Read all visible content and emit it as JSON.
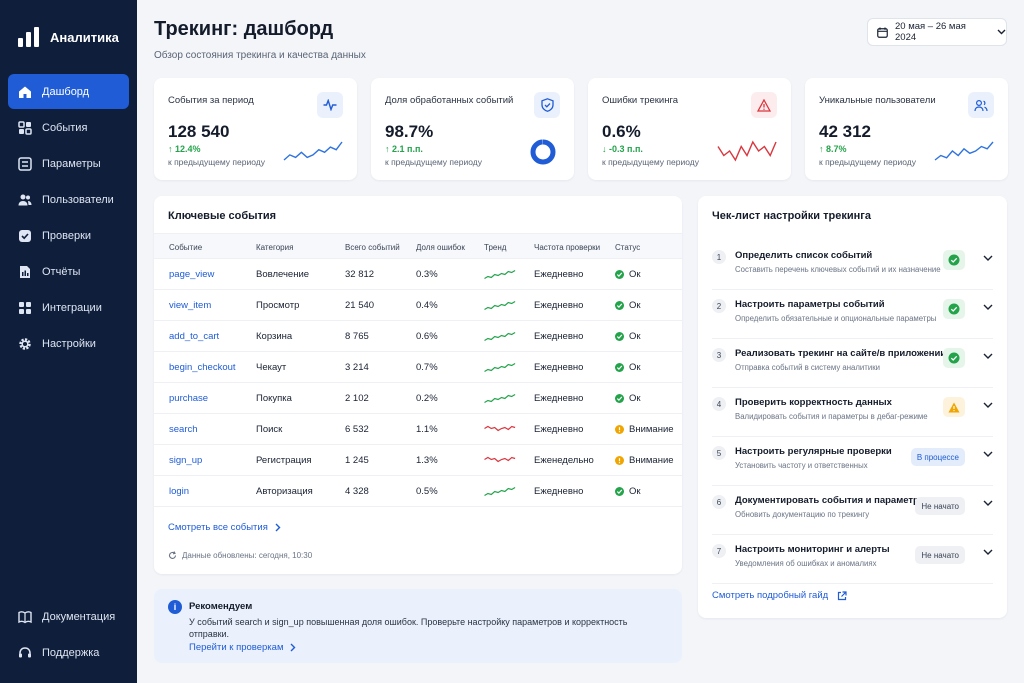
{
  "app": {
    "name": "Аналитика"
  },
  "sidebar": {
    "items": [
      {
        "label": "Дашборд",
        "icon": "home-icon"
      },
      {
        "label": "События",
        "icon": "grid-icon"
      },
      {
        "label": "Параметры",
        "icon": "sliders-icon"
      },
      {
        "label": "Пользователи",
        "icon": "users-icon"
      },
      {
        "label": "Проверки",
        "icon": "check-shield-icon"
      },
      {
        "label": "Отчёты",
        "icon": "report-icon"
      },
      {
        "label": "Интеграции",
        "icon": "integrations-icon"
      },
      {
        "label": "Настройки",
        "icon": "gear-icon"
      }
    ],
    "bottom": [
      {
        "label": "Документация",
        "icon": "book-icon"
      },
      {
        "label": "Поддержка",
        "icon": "headset-icon"
      }
    ]
  },
  "header": {
    "title": "Трекинг: дашборд",
    "subtitle": "Обзор состояния трекинга и качества данных",
    "date_range": "20 мая – 26 мая 2024"
  },
  "kpis": [
    {
      "title": "События за период",
      "value": "128 540",
      "delta": "↑ 12.4%",
      "note": "к предыдущему периоду",
      "icon": "pulse-icon",
      "trend": [
        5,
        7,
        6,
        8,
        6,
        7,
        9,
        8,
        10,
        9,
        12
      ]
    },
    {
      "title": "Доля обработанных событий",
      "value": "98.7%",
      "delta": "↑ 2.1 п.п.",
      "note": "к предыдущему периоду",
      "icon": "shield-check-icon",
      "progress": 0.987
    },
    {
      "title": "Ошибки трекинга",
      "value": "0.6%",
      "delta": "↓ -0.3 п.п.",
      "note": "к предыдущему периоду",
      "icon": "warning-icon",
      "trend": [
        8,
        6,
        7,
        5,
        8,
        6,
        9,
        7,
        8,
        6,
        9
      ]
    },
    {
      "title": "Уникальные пользователи",
      "value": "42 312",
      "delta": "↑ 8.7%",
      "note": "к предыдущему периоду",
      "icon": "users-icon",
      "trend": [
        4,
        6,
        5,
        8,
        6,
        9,
        7,
        8,
        10,
        9,
        12
      ]
    }
  ],
  "events": {
    "title": "Ключевые события",
    "columns": [
      "Событие",
      "Категория",
      "Всего событий",
      "Доля ошибок",
      "Тренд",
      "Частота проверки",
      "Статус"
    ],
    "rows": [
      {
        "event": "page_view",
        "category": "Вовлечение",
        "total": "32 812",
        "error": "0.3%",
        "trend": "up",
        "frequency": "Ежедневно",
        "status": "Ок",
        "status_type": "ok"
      },
      {
        "event": "view_item",
        "category": "Просмотр",
        "total": "21 540",
        "error": "0.4%",
        "trend": "up",
        "frequency": "Ежедневно",
        "status": "Ок",
        "status_type": "ok"
      },
      {
        "event": "add_to_cart",
        "category": "Корзина",
        "total": "8 765",
        "error": "0.6%",
        "trend": "up",
        "frequency": "Ежедневно",
        "status": "Ок",
        "status_type": "ok"
      },
      {
        "event": "begin_checkout",
        "category": "Чекаут",
        "total": "3 214",
        "error": "0.7%",
        "trend": "up",
        "frequency": "Ежедневно",
        "status": "Ок",
        "status_type": "ok"
      },
      {
        "event": "purchase",
        "category": "Покупка",
        "total": "2 102",
        "error": "0.2%",
        "trend": "up",
        "frequency": "Ежедневно",
        "status": "Ок",
        "status_type": "ok"
      },
      {
        "event": "search",
        "category": "Поиск",
        "total": "6 532",
        "error": "1.1%",
        "trend": "down",
        "frequency": "Ежедневно",
        "status": "Внимание",
        "status_type": "warn"
      },
      {
        "event": "sign_up",
        "category": "Регистрация",
        "total": "1 245",
        "error": "1.3%",
        "trend": "down",
        "frequency": "Еженедельно",
        "status": "Внимание",
        "status_type": "warn"
      },
      {
        "event": "login",
        "category": "Авторизация",
        "total": "4 328",
        "error": "0.5%",
        "trend": "up",
        "frequency": "Ежедневно",
        "status": "Ок",
        "status_type": "ok"
      }
    ],
    "see_all": "Смотреть все события",
    "updated": "Данные обновлены: сегодня, 10:30"
  },
  "recommend": {
    "title": "Рекомендуем",
    "text": "У событий search и sign_up повышенная доля ошибок. Проверьте настройку параметров и корректность отправки.",
    "link": "Перейти к проверкам"
  },
  "checklist": {
    "title": "Чек-лист настройки трекинга",
    "steps": [
      {
        "num": "1",
        "title": "Определить список событий",
        "desc": "Составить перечень ключевых событий и их назначение",
        "state": "done"
      },
      {
        "num": "2",
        "title": "Настроить параметры событий",
        "desc": "Определить обязательные и опциональные параметры",
        "state": "done"
      },
      {
        "num": "3",
        "title": "Реализовать трекинг на сайте/в приложении",
        "desc": "Отправка событий в систему аналитики",
        "state": "done"
      },
      {
        "num": "4",
        "title": "Проверить корректность данных",
        "desc": "Валидировать события и параметры в дебаг-режиме",
        "state": "warn"
      },
      {
        "num": "5",
        "title": "Настроить регулярные проверки",
        "desc": "Установить частоту и ответственных",
        "state": "progress",
        "badge": "В процессе"
      },
      {
        "num": "6",
        "title": "Документировать события и параметры",
        "desc": "Обновить документацию по трекингу",
        "state": "todo",
        "badge": "Не начато"
      },
      {
        "num": "7",
        "title": "Настроить мониторинг и алерты",
        "desc": "Уведомления об ошибках и аномалиях",
        "state": "todo",
        "badge": "Не начато"
      }
    ],
    "guide_link": "Смотреть подробный гайд"
  },
  "colors": {
    "sidebar": "#0f1e3a",
    "accent": "#1f5cd6",
    "ok": "#23a34a",
    "warn": "#f0a500",
    "error": "#d9363e"
  }
}
